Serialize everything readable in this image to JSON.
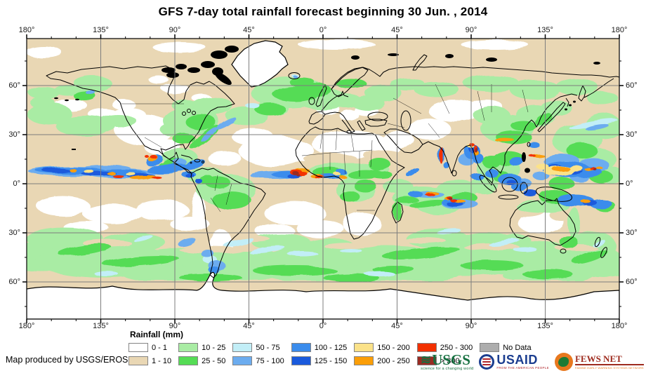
{
  "title": "GFS 7-day total rainfall forecast beginning 30 Jun. , 2014",
  "map": {
    "x_ticks": [
      "180°",
      "135°",
      "90°",
      "45°",
      "0°",
      "45°",
      "90°",
      "135°",
      "180°"
    ],
    "y_ticks": [
      "60°",
      "30°",
      "0°",
      "30°",
      "60°"
    ]
  },
  "legend": {
    "title": "Rainfall (mm)",
    "items": [
      {
        "label": "0 - 1",
        "color": "#FFFFFF"
      },
      {
        "label": "1 - 10",
        "color": "#E9D7B4"
      },
      {
        "label": "10 - 25",
        "color": "#A9ECA4"
      },
      {
        "label": "25 - 50",
        "color": "#55DC55"
      },
      {
        "label": "50 - 75",
        "color": "#C2EEF7"
      },
      {
        "label": "75 - 100",
        "color": "#6CACEF"
      },
      {
        "label": "100 - 125",
        "color": "#3B8CEC"
      },
      {
        "label": "125 - 150",
        "color": "#1A5ADC"
      },
      {
        "label": "150 - 200",
        "color": "#FBE289"
      },
      {
        "label": "200 - 250",
        "color": "#FB9E07"
      },
      {
        "label": "250 - 300",
        "color": "#F23000"
      },
      {
        "label": "> 300",
        "color": "#9A2B22"
      },
      {
        "label": "No Data",
        "color": "#ADADAD"
      }
    ]
  },
  "palette": {
    "w": "#FFFFFF",
    "tan": "#E9D7B4",
    "g1": "#A9ECA4",
    "g2": "#55DC55",
    "c": "#C2EEF7",
    "b1": "#6CACEF",
    "b2": "#3B8CEC",
    "b3": "#1A5ADC",
    "y": "#FBE289",
    "o": "#FB9E07",
    "r": "#F23000",
    "dr": "#9A2B22",
    "nd": "#ADADAD"
  },
  "credit": "Map produced by USGS/EROS",
  "logos": {
    "usgs": {
      "wave": "≋",
      "name": "USGS",
      "tagline": "science for a changing world"
    },
    "usaid": {
      "name": "USAID",
      "tagline": "FROM THE AMERICAN PEOPLE"
    },
    "fews": {
      "name": "FEWS NET",
      "tagline": "FAMINE EARLY WARNING SYSTEMS NETWORK"
    }
  }
}
